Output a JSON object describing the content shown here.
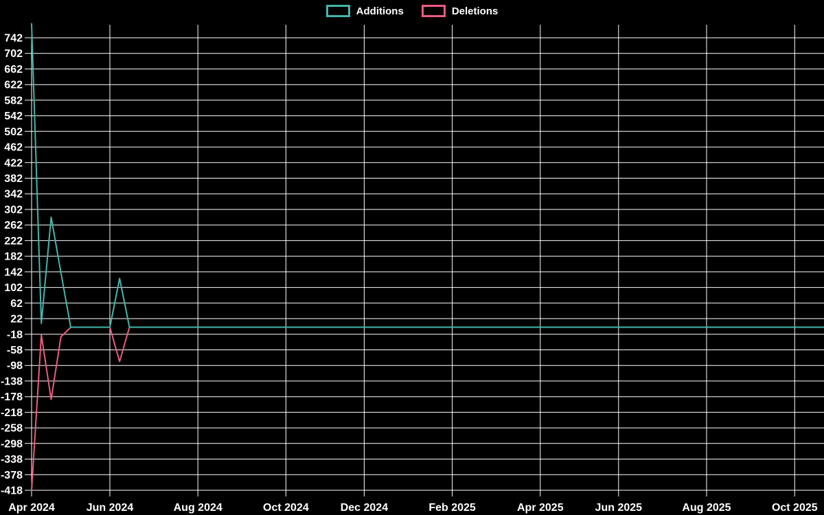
{
  "page": {
    "background": "#000000",
    "text_color": "#ffffff"
  },
  "legend": {
    "items": [
      {
        "label": "Additions",
        "color": "#41b7ad"
      },
      {
        "label": "Deletions",
        "color": "#ee5b80"
      }
    ]
  },
  "chart_data": {
    "type": "line",
    "title": "",
    "background": "#000000",
    "grid": true,
    "grid_color": "#ffffff",
    "legend_position": "top-center",
    "x_axis": {
      "unit": "week",
      "num_points": 82,
      "tick_labels": [
        "Apr 2024",
        "Jun 2024",
        "Aug 2024",
        "Oct 2024",
        "Dec 2024",
        "Feb 2025",
        "Apr 2025",
        "Jun 2025",
        "Aug 2025",
        "Oct 2025"
      ],
      "tick_weeks": [
        0,
        8,
        17,
        26,
        34,
        43,
        52,
        60,
        69,
        78
      ]
    },
    "y_axis": {
      "min": -418,
      "max": 742,
      "step": 40,
      "tick_values": [
        742,
        702,
        662,
        622,
        582,
        542,
        502,
        462,
        422,
        382,
        342,
        302,
        262,
        222,
        182,
        142,
        102,
        62,
        22,
        -18,
        -58,
        -98,
        -138,
        -178,
        -218,
        -258,
        -298,
        -338,
        -378,
        -418
      ]
    },
    "series": [
      {
        "name": "Additions",
        "color": "#41b7ad",
        "values": [
          778,
          10,
          282,
          140,
          0,
          0,
          0,
          0,
          0,
          125,
          0,
          0,
          0,
          0,
          0,
          0,
          0,
          0,
          0,
          0,
          0,
          0,
          0,
          0,
          0,
          0,
          0,
          0,
          0,
          0,
          0,
          0,
          0,
          0,
          0,
          0,
          0,
          0,
          0,
          0,
          0,
          0,
          0,
          0,
          0,
          0,
          0,
          0,
          0,
          0,
          0,
          0,
          0,
          0,
          0,
          0,
          0,
          0,
          0,
          0,
          0,
          0,
          0,
          0,
          0,
          0,
          0,
          0,
          0,
          0,
          0,
          0,
          0,
          0,
          0,
          0,
          0,
          0,
          0,
          0,
          0,
          0
        ]
      },
      {
        "name": "Deletions",
        "color": "#ee5b80",
        "values": [
          -418,
          -20,
          -185,
          -25,
          0,
          0,
          0,
          0,
          0,
          -88,
          0,
          0,
          0,
          0,
          0,
          0,
          0,
          0,
          0,
          0,
          0,
          0,
          0,
          0,
          0,
          0,
          0,
          0,
          0,
          0,
          0,
          0,
          0,
          0,
          0,
          0,
          0,
          0,
          0,
          0,
          0,
          0,
          0,
          0,
          0,
          0,
          0,
          0,
          0,
          0,
          0,
          0,
          0,
          0,
          0,
          0,
          0,
          0,
          0,
          0,
          0,
          0,
          0,
          0,
          0,
          0,
          0,
          0,
          0,
          0,
          0,
          0,
          0,
          0,
          0,
          0,
          0,
          0,
          0,
          0,
          0,
          0
        ]
      }
    ]
  }
}
